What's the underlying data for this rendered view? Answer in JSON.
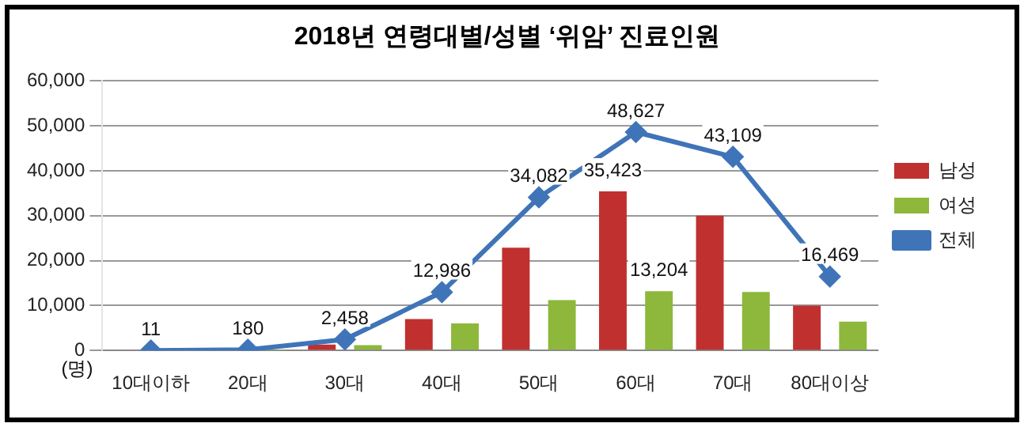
{
  "chart_data": {
    "type": "bar",
    "title": "2018년 연령대별/성별 ‘위암’ 진료인원",
    "ylabel": "(명)",
    "categories": [
      "10대이하",
      "20대",
      "30대",
      "40대",
      "50대",
      "60대",
      "70대",
      "80대이상"
    ],
    "series": [
      {
        "name": "남성",
        "color": "#c0302f",
        "values": [
          0,
          100,
          1300,
          7000,
          22900,
          35423,
          30000,
          10000
        ],
        "value_labels": [
          null,
          null,
          null,
          null,
          null,
          "35,423",
          null,
          null
        ]
      },
      {
        "name": "여성",
        "color": "#8db83c",
        "values": [
          0,
          100,
          1200,
          6000,
          11200,
          13204,
          13000,
          6400
        ],
        "value_labels": [
          null,
          null,
          null,
          null,
          null,
          "13,204",
          null,
          null
        ]
      },
      {
        "name": "전체",
        "type": "line",
        "color": "#3f74b8",
        "values": [
          11,
          180,
          2458,
          12986,
          34082,
          48627,
          43109,
          16469
        ],
        "value_labels": [
          "11",
          "180",
          "2,458",
          "12,986",
          "34,082",
          "48,627",
          "43,109",
          "16,469"
        ]
      }
    ],
    "ylim": [
      0,
      60000
    ],
    "yticks": [
      {
        "value": 0,
        "label": "0"
      },
      {
        "value": 10000,
        "label": "10,000"
      },
      {
        "value": 20000,
        "label": "20,000"
      },
      {
        "value": 30000,
        "label": "30,000"
      },
      {
        "value": 40000,
        "label": "40,000"
      },
      {
        "value": 50000,
        "label": "50,000"
      },
      {
        "value": 60000,
        "label": "60,000"
      }
    ],
    "grid": "y",
    "legend": "right",
    "marker": "diamond",
    "line_style": "solid"
  }
}
